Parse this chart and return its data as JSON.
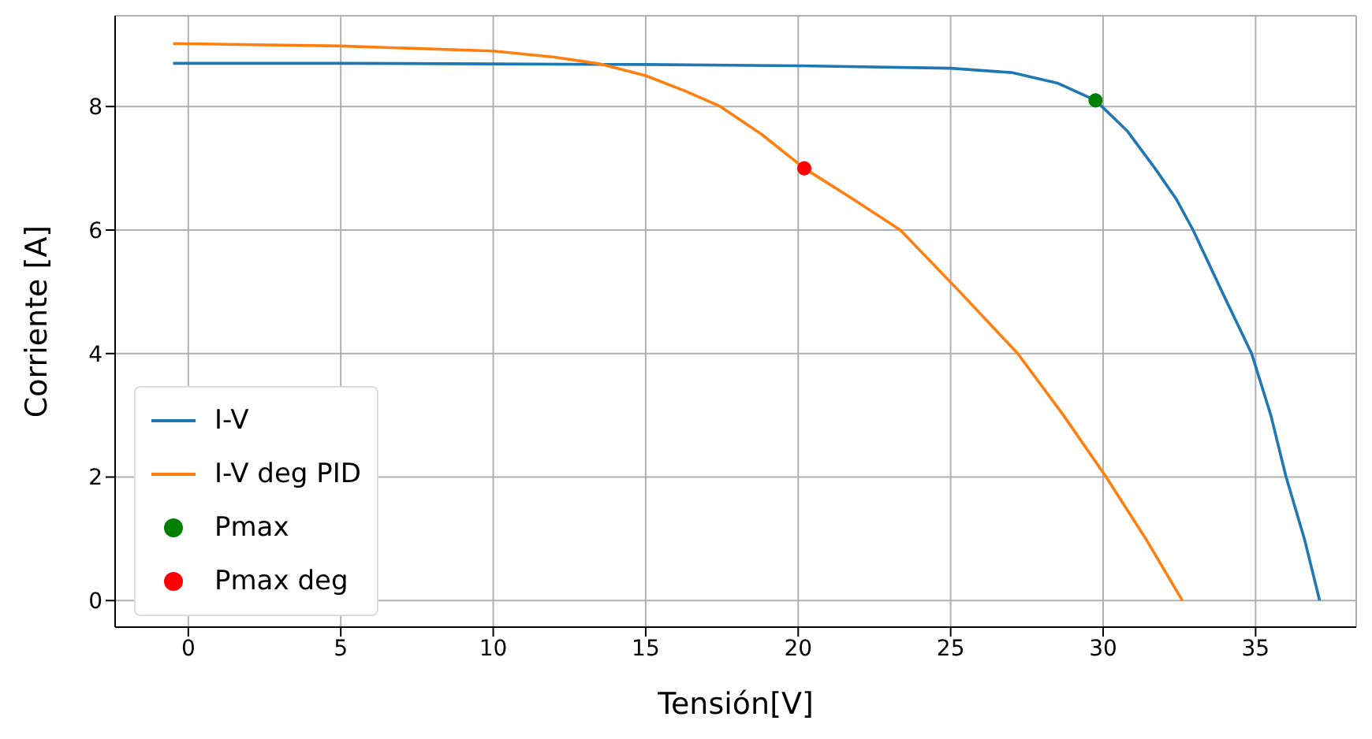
{
  "chart_data": {
    "type": "line",
    "xlabel": "Tensión[V]",
    "ylabel": "Corriente [A]",
    "xlim": [
      -2.4,
      38.3
    ],
    "ylim": [
      -0.43,
      9.47
    ],
    "xticks": [
      0,
      5,
      10,
      15,
      20,
      25,
      30,
      35
    ],
    "yticks": [
      0,
      2,
      4,
      6,
      8
    ],
    "grid": true,
    "legend": "bottom left",
    "series": [
      {
        "name": "I-V",
        "color": "#1f77b4",
        "marker": "none",
        "x": [
          -0.5,
          5,
          10,
          15,
          20,
          25,
          27,
          28.5,
          29.75,
          30.8,
          31.7,
          32.4,
          32.95,
          33.9,
          34.87,
          35.5,
          36,
          36.6,
          37.1
        ],
        "values": [
          8.7,
          8.7,
          8.69,
          8.68,
          8.66,
          8.62,
          8.55,
          8.38,
          8.1,
          7.6,
          7,
          6.5,
          6,
          5,
          4,
          3,
          2,
          1,
          0
        ]
      },
      {
        "name": "I-V deg PID",
        "color": "#ff7f0e",
        "marker": "none",
        "x": [
          -0.5,
          5,
          10,
          12,
          13.5,
          15,
          16.3,
          17.45,
          18.8,
          20.2,
          21.8,
          23.35,
          25.3,
          27.2,
          28.7,
          30.1,
          31.4,
          32.6
        ],
        "values": [
          9.02,
          8.98,
          8.9,
          8.8,
          8.69,
          8.5,
          8.25,
          8,
          7.55,
          7,
          6.5,
          6,
          5,
          4,
          3,
          2,
          1,
          0
        ]
      },
      {
        "name": "Pmax",
        "type": "scatter",
        "color": "#008000",
        "marker": "circle",
        "x": [
          29.75
        ],
        "values": [
          8.1
        ]
      },
      {
        "name": "Pmax deg",
        "type": "scatter",
        "color": "#ff0000",
        "marker": "circle",
        "x": [
          20.2
        ],
        "values": [
          7
        ]
      }
    ]
  }
}
